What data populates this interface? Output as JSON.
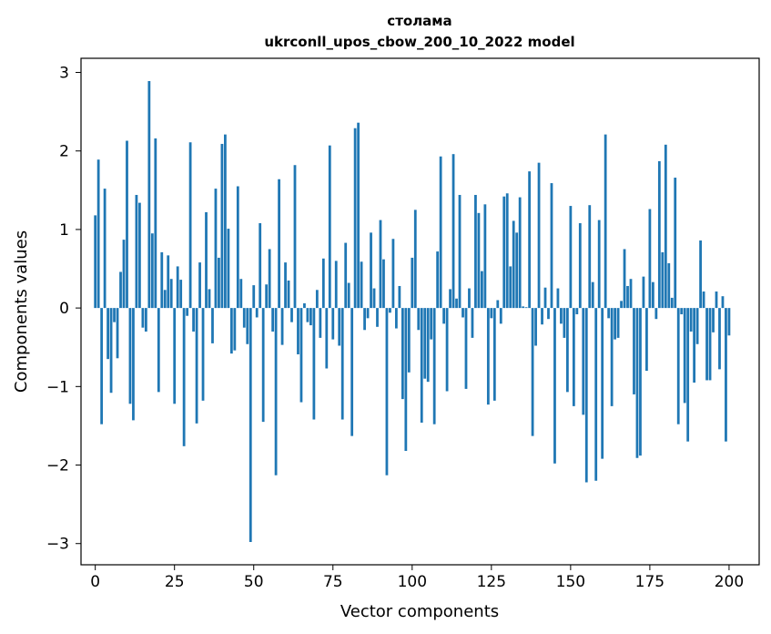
{
  "chart_data": {
    "type": "bar",
    "title_line1": "столама",
    "title_line2": "ukrconll_upos_cbow_200_10_2022 model",
    "xlabel": "Vector components",
    "ylabel": "Components values",
    "xlim": [
      -4.5,
      209.5
    ],
    "ylim": [
      -3.27,
      3.18
    ],
    "xticks": [
      0,
      25,
      50,
      75,
      100,
      125,
      150,
      175,
      200
    ],
    "xtick_labels": [
      "0",
      "25",
      "50",
      "75",
      "100",
      "125",
      "150",
      "175",
      "200"
    ],
    "yticks": [
      -3,
      -2,
      -1,
      0,
      1,
      2,
      3
    ],
    "ytick_labels": [
      "−3",
      "−2",
      "−1",
      "0",
      "1",
      "2",
      "3"
    ],
    "bar_color": "#1f77b4",
    "grid": false,
    "values": [
      1.18,
      1.89,
      -1.48,
      1.52,
      -0.65,
      -1.08,
      -0.18,
      -0.64,
      0.46,
      0.87,
      2.13,
      -1.22,
      -1.43,
      1.44,
      1.34,
      -0.25,
      -0.3,
      2.89,
      0.95,
      2.16,
      -1.07,
      0.71,
      0.23,
      0.67,
      0.37,
      -1.22,
      0.53,
      0.36,
      -1.76,
      -0.1,
      2.11,
      -0.3,
      -1.47,
      0.58,
      -1.18,
      1.22,
      0.24,
      -0.45,
      1.52,
      0.64,
      2.09,
      2.21,
      1.01,
      -0.58,
      -0.54,
      1.55,
      0.37,
      -0.25,
      -0.46,
      -2.98,
      0.29,
      -0.12,
      1.08,
      -1.45,
      0.3,
      0.75,
      -0.3,
      -2.13,
      1.64,
      -0.47,
      0.58,
      0.35,
      -0.18,
      1.82,
      -0.59,
      -1.2,
      0.06,
      -0.18,
      -0.22,
      -1.42,
      0.23,
      -0.38,
      0.63,
      -0.77,
      2.07,
      -0.4,
      0.6,
      -0.48,
      -1.42,
      0.83,
      0.32,
      -1.63,
      2.29,
      2.36,
      0.59,
      -0.28,
      -0.13,
      0.96,
      0.25,
      -0.24,
      1.12,
      0.62,
      -2.13,
      -0.06,
      0.88,
      -0.26,
      0.28,
      -1.16,
      -1.82,
      -0.82,
      0.64,
      1.25,
      -0.28,
      -1.46,
      -0.9,
      -0.94,
      -0.4,
      -1.48,
      0.72,
      1.93,
      -0.2,
      -1.06,
      0.24,
      1.96,
      0.12,
      1.44,
      -0.12,
      -1.03,
      0.25,
      -0.38,
      1.44,
      1.21,
      0.47,
      1.32,
      -1.23,
      -0.13,
      -1.18,
      0.1,
      -0.2,
      1.42,
      1.46,
      0.53,
      1.11,
      0.96,
      1.41,
      0.02,
      0.01,
      1.74,
      -1.63,
      -0.48,
      1.85,
      -0.21,
      0.26,
      -0.14,
      1.59,
      -1.98,
      0.25,
      -0.2,
      -0.38,
      -1.07,
      1.3,
      -1.25,
      -0.08,
      1.08,
      -1.36,
      -2.22,
      1.31,
      0.33,
      -2.2,
      1.12,
      -1.92,
      2.21,
      -0.13,
      -1.25,
      -0.4,
      -0.38,
      0.09,
      0.75,
      0.28,
      0.37,
      -1.1,
      -1.91,
      -1.88,
      0.4,
      -0.8,
      1.26,
      0.33,
      -0.14,
      1.87,
      0.71,
      2.08,
      0.57,
      0.13,
      1.66,
      -1.48,
      -0.08,
      -1.21,
      -1.7,
      -0.3,
      -0.95,
      -0.46,
      0.86,
      0.21,
      -0.92,
      -0.92,
      -0.31,
      0.21,
      -0.78,
      0.15,
      -1.7,
      -0.35
    ]
  }
}
